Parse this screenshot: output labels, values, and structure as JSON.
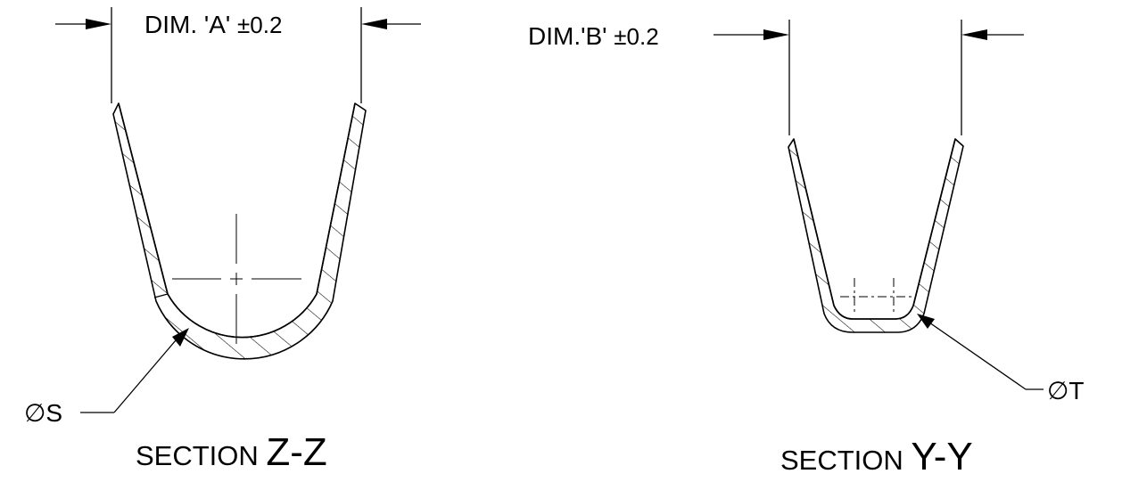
{
  "colors": {
    "line": "#000000",
    "background": "#ffffff"
  },
  "section_zz": {
    "dim_label": "DIM. 'A' ",
    "dim_tolerance": "±0.2",
    "leader_label": "∅S",
    "caption_word": "SECTION ",
    "caption_id": "Z-Z"
  },
  "section_yy": {
    "dim_label": "DIM.'B' ",
    "dim_tolerance": "±0.2",
    "leader_label": "∅T",
    "caption_word": "SECTION ",
    "caption_id": "Y-Y"
  }
}
